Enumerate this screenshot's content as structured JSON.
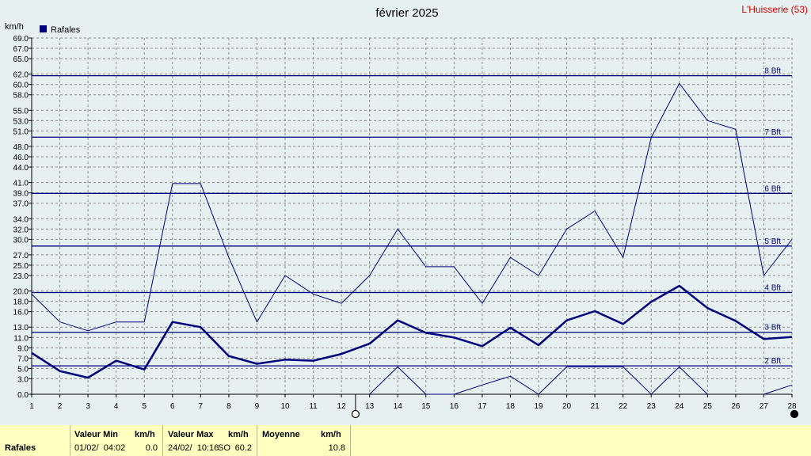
{
  "title": "février 2025",
  "station": "L'Huisserie (53)",
  "unit_label": "km/h",
  "legend": "Rafales",
  "colors": {
    "background": "#E6F0F0",
    "series": "#00007F",
    "beaufort_line": "#00007F",
    "grid": "#8C8C8C",
    "station_text": "#D00000",
    "footer_bg": "#FFFFC0"
  },
  "chart_data": {
    "type": "line",
    "title": "février 2025",
    "ylabel": "km/h",
    "xlabel": "",
    "x": [
      1,
      2,
      3,
      4,
      5,
      6,
      7,
      8,
      9,
      10,
      11,
      12,
      13,
      14,
      15,
      16,
      17,
      18,
      19,
      20,
      21,
      22,
      23,
      24,
      25,
      26,
      27,
      28
    ],
    "ylim": [
      0,
      69
    ],
    "xlim": [
      1,
      28
    ],
    "y_ticks": [
      "0.0",
      "3.0",
      "5.0",
      "7.0",
      "9.0",
      "11.0",
      "13.0",
      "16.0",
      "18.0",
      "20.0",
      "23.0",
      "25.0",
      "27.0",
      "30.0",
      "32.0",
      "34.0",
      "37.0",
      "39.0",
      "41.0",
      "44.0",
      "46.0",
      "48.0",
      "51.0",
      "53.0",
      "55.0",
      "58.0",
      "60.0",
      "62.0",
      "65.0",
      "67.0",
      "69.0"
    ],
    "grid": true,
    "legend_position": "top-left",
    "series": [
      {
        "name": "Rafales",
        "role": "max",
        "width": 1,
        "values": [
          19.4,
          14.0,
          12.3,
          14.0,
          14.0,
          40.8,
          40.8,
          26.5,
          14.0,
          23.0,
          19.4,
          17.6,
          23.0,
          32.0,
          24.7,
          24.7,
          17.6,
          26.5,
          23.0,
          32.0,
          35.5,
          26.5,
          49.7,
          60.2,
          53.0,
          51.3,
          23.0,
          30.0
        ]
      },
      {
        "name": "",
        "role": "average",
        "width": 2.5,
        "values": [
          8.0,
          4.5,
          3.2,
          6.5,
          4.8,
          14.0,
          13.0,
          7.4,
          5.9,
          6.7,
          6.5,
          7.8,
          9.8,
          14.3,
          11.9,
          11.0,
          9.3,
          12.9,
          9.5,
          14.3,
          16.1,
          13.6,
          17.9,
          21.0,
          16.7,
          14.2,
          10.7,
          11.1
        ]
      },
      {
        "name": "",
        "role": "min",
        "width": 1,
        "values": [
          null,
          null,
          null,
          null,
          null,
          null,
          null,
          null,
          null,
          null,
          null,
          null,
          0.0,
          5.3,
          0.0,
          0.0,
          1.8,
          3.5,
          0.0,
          5.3,
          5.3,
          5.3,
          0.0,
          5.3,
          0.0,
          null,
          0.0,
          1.8
        ]
      }
    ],
    "beaufort_lines": [
      {
        "label": "2 Bft",
        "value": 5.5
      },
      {
        "label": "3 Bft",
        "value": 12.0
      },
      {
        "label": "4 Bft",
        "value": 19.7
      },
      {
        "label": "5 Bft",
        "value": 28.7
      },
      {
        "label": "6 Bft",
        "value": 38.9
      },
      {
        "label": "7 Bft",
        "value": 49.8
      },
      {
        "label": "8 Bft",
        "value": 61.7
      }
    ],
    "moon_phases": [
      {
        "day": 12.5,
        "phase": "new-moon"
      },
      {
        "day": 28,
        "phase": "full-moon"
      }
    ]
  },
  "footer": {
    "row_label": "Rafales",
    "min_header": "Valeur Min",
    "min_unit": "km/h",
    "min_date": "01/02/  04:02",
    "min_value": "0.0",
    "max_header": "Valeur Max",
    "max_unit": "km/h",
    "max_date": "24/02/  10:16",
    "max_ws": "SO",
    "max_value": "60.2",
    "avg_header": "Moyenne",
    "avg_unit": "km/h",
    "avg_value": "10.8"
  }
}
